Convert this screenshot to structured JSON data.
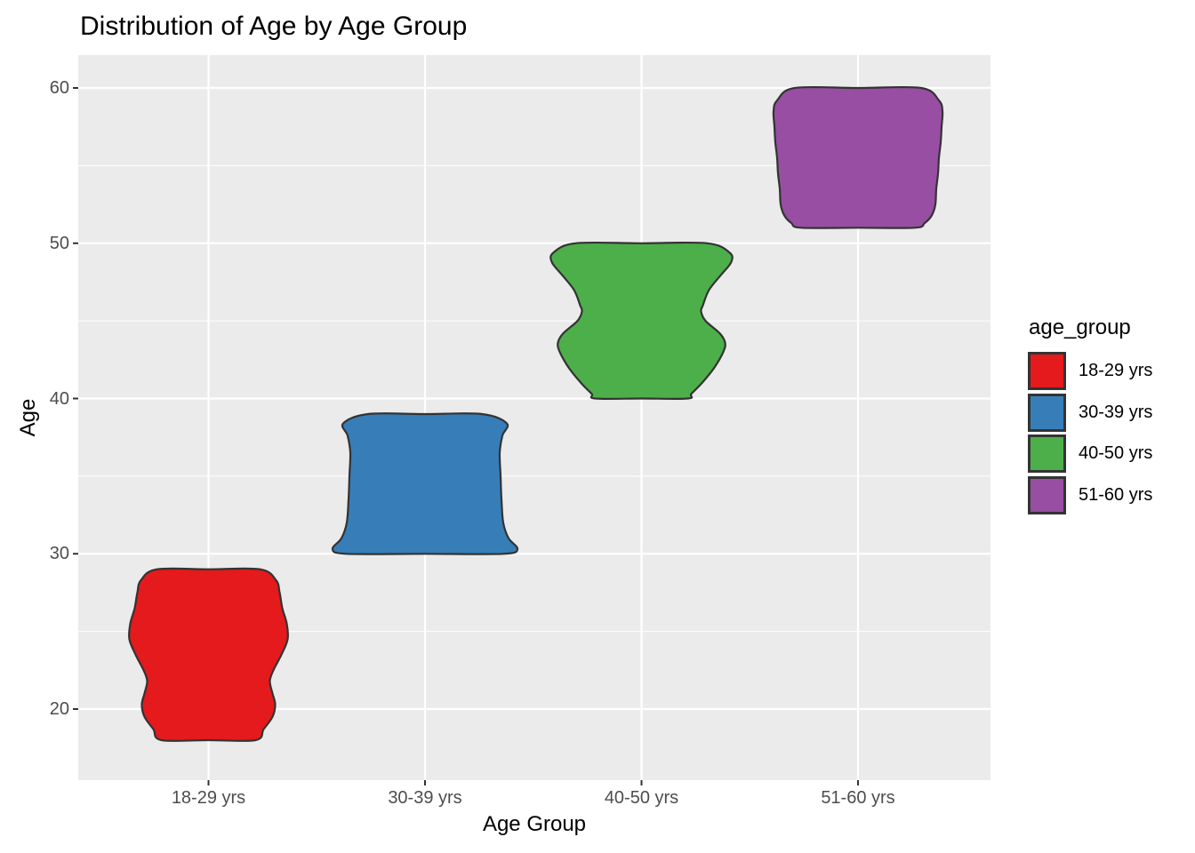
{
  "chart_data": {
    "type": "violin",
    "title": "Distribution of Age by Age Group",
    "xlabel": "Age Group",
    "ylabel": "Age",
    "categories": [
      "18-29 yrs",
      "30-39 yrs",
      "40-50 yrs",
      "51-60 yrs"
    ],
    "y_major_ticks": [
      60,
      50,
      40,
      30,
      20
    ],
    "y_minor_gridlines": [
      55,
      45,
      35,
      25
    ],
    "ylim": [
      15.4,
      62.1
    ],
    "grid": "on",
    "panel_background": "#EBEBEB",
    "gridline_color": "#FFFFFF",
    "outline_color": "#333333",
    "axis_tick_color": "#333333",
    "tick_label_color": "#4D4D4D",
    "legend": {
      "title": "age_group",
      "position": "right",
      "entries": [
        {
          "label": "18-29 yrs",
          "color": "#E41A1C"
        },
        {
          "label": "30-39 yrs",
          "color": "#377EB8"
        },
        {
          "label": "40-50 yrs",
          "color": "#4DAF4A"
        },
        {
          "label": "51-60 yrs",
          "color": "#984EA3"
        }
      ]
    },
    "series": [
      {
        "name": "18-29 yrs",
        "color": "#E41A1C",
        "age_min": 18,
        "age_max": 29,
        "profile": [
          [
            29,
            58
          ],
          [
            28.3,
            76
          ],
          [
            27.5,
            80
          ],
          [
            26.5,
            83
          ],
          [
            25.5,
            88
          ],
          [
            24.5,
            89
          ],
          [
            23.5,
            82
          ],
          [
            22.5,
            73
          ],
          [
            21.8,
            69
          ],
          [
            21,
            72
          ],
          [
            20.3,
            75
          ],
          [
            19.5,
            72
          ],
          [
            18.7,
            62
          ],
          [
            18,
            53
          ]
        ]
      },
      {
        "name": "30-39 yrs",
        "color": "#377EB8",
        "age_min": 30,
        "age_max": 39,
        "profile": [
          [
            39,
            64
          ],
          [
            38.4,
            92
          ],
          [
            37.6,
            87
          ],
          [
            36.5,
            84
          ],
          [
            35,
            85
          ],
          [
            33.5,
            86
          ],
          [
            32,
            88
          ],
          [
            31,
            94
          ],
          [
            30.3,
            104
          ],
          [
            30,
            88
          ]
        ]
      },
      {
        "name": "40-50 yrs",
        "color": "#4DAF4A",
        "age_min": 40,
        "age_max": 50,
        "profile": [
          [
            50,
            74
          ],
          [
            49.4,
            99
          ],
          [
            48.8,
            101
          ],
          [
            48,
            90
          ],
          [
            47,
            76
          ],
          [
            46,
            69
          ],
          [
            45.6,
            67
          ],
          [
            45,
            72
          ],
          [
            44.2,
            88
          ],
          [
            43.6,
            94
          ],
          [
            43,
            92
          ],
          [
            42,
            82
          ],
          [
            41,
            68
          ],
          [
            40.3,
            56
          ],
          [
            40,
            52
          ]
        ]
      },
      {
        "name": "51-60 yrs",
        "color": "#984EA3",
        "age_min": 51,
        "age_max": 60,
        "profile": [
          [
            60,
            71
          ],
          [
            59.2,
            91
          ],
          [
            58.5,
            95
          ],
          [
            57.5,
            94
          ],
          [
            56.5,
            93
          ],
          [
            55.5,
            91
          ],
          [
            54.5,
            90
          ],
          [
            53.5,
            88
          ],
          [
            52.5,
            87
          ],
          [
            51.8,
            83
          ],
          [
            51.3,
            75
          ],
          [
            51,
            64
          ]
        ]
      }
    ]
  }
}
